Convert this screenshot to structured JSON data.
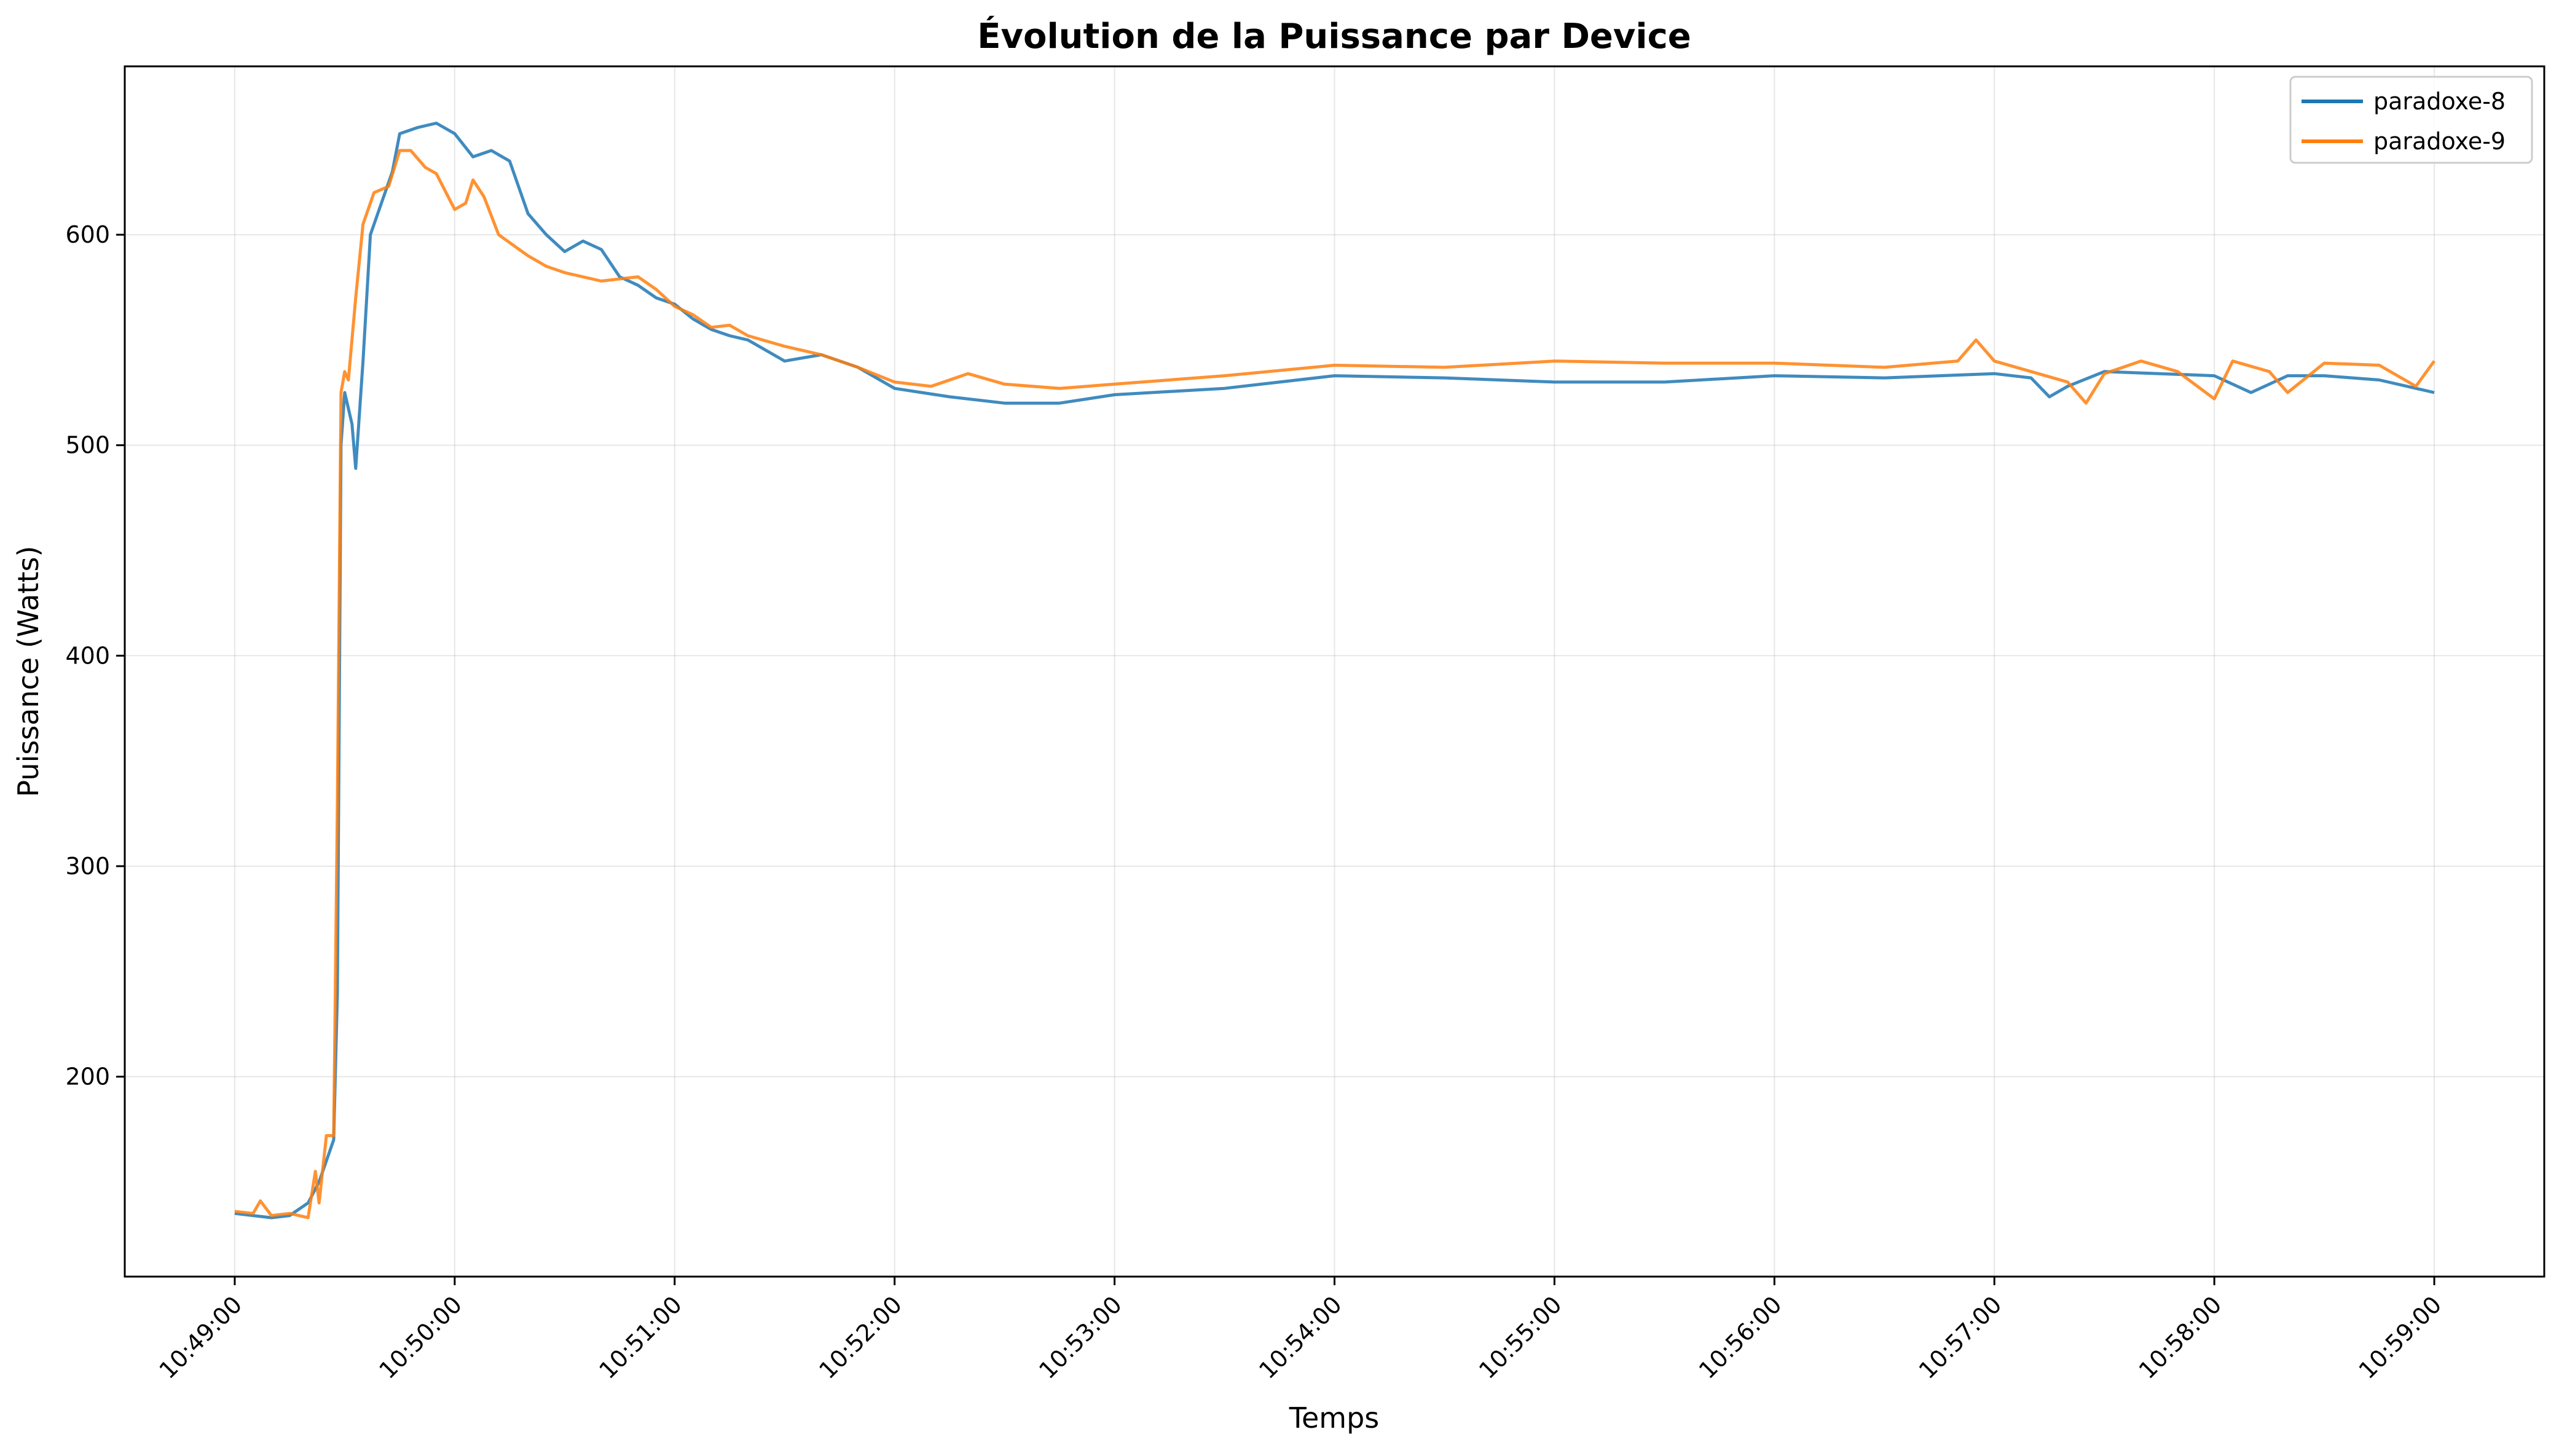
{
  "chart_data": {
    "type": "line",
    "title": "Évolution de la Puissance par Device",
    "xlabel": "Temps",
    "ylabel": "Puissance (Watts)",
    "x_ticks": [
      "10:49:00",
      "10:50:00",
      "10:51:00",
      "10:52:00",
      "10:53:00",
      "10:54:00",
      "10:55:00",
      "10:56:00",
      "10:57:00",
      "10:58:00",
      "10:59:00"
    ],
    "x_range": [
      "10:48:30",
      "10:59:30"
    ],
    "y_ticks": [
      200,
      300,
      400,
      500,
      600
    ],
    "ylim": [
      105,
      680
    ],
    "grid": true,
    "legend_position": "top-right",
    "series": [
      {
        "name": "paradoxe-8",
        "color": "#1f77b4",
        "points": [
          [
            "10:49:00",
            135
          ],
          [
            "10:49:10",
            133
          ],
          [
            "10:49:15",
            134
          ],
          [
            "10:49:20",
            140
          ],
          [
            "10:49:23",
            150
          ],
          [
            "10:49:25",
            160
          ],
          [
            "10:49:27",
            170
          ],
          [
            "10:49:28",
            240
          ],
          [
            "10:49:29",
            500
          ],
          [
            "10:49:30",
            525
          ],
          [
            "10:49:32",
            510
          ],
          [
            "10:49:33",
            489
          ],
          [
            "10:49:35",
            540
          ],
          [
            "10:49:37",
            600
          ],
          [
            "10:49:40",
            615
          ],
          [
            "10:49:43",
            630
          ],
          [
            "10:49:45",
            648
          ],
          [
            "10:49:50",
            651
          ],
          [
            "10:49:55",
            653
          ],
          [
            "10:50:00",
            648
          ],
          [
            "10:50:05",
            637
          ],
          [
            "10:50:10",
            640
          ],
          [
            "10:50:15",
            635
          ],
          [
            "10:50:20",
            610
          ],
          [
            "10:50:25",
            600
          ],
          [
            "10:50:30",
            592
          ],
          [
            "10:50:35",
            597
          ],
          [
            "10:50:40",
            593
          ],
          [
            "10:50:45",
            580
          ],
          [
            "10:50:50",
            576
          ],
          [
            "10:50:55",
            570
          ],
          [
            "10:51:00",
            567
          ],
          [
            "10:51:05",
            560
          ],
          [
            "10:51:10",
            555
          ],
          [
            "10:51:15",
            552
          ],
          [
            "10:51:20",
            550
          ],
          [
            "10:51:30",
            540
          ],
          [
            "10:51:40",
            543
          ],
          [
            "10:51:50",
            537
          ],
          [
            "10:52:00",
            527
          ],
          [
            "10:52:15",
            523
          ],
          [
            "10:52:30",
            520
          ],
          [
            "10:52:45",
            520
          ],
          [
            "10:53:00",
            524
          ],
          [
            "10:53:30",
            527
          ],
          [
            "10:54:00",
            533
          ],
          [
            "10:54:30",
            532
          ],
          [
            "10:55:00",
            530
          ],
          [
            "10:55:30",
            530
          ],
          [
            "10:56:00",
            533
          ],
          [
            "10:56:30",
            532
          ],
          [
            "10:57:00",
            534
          ],
          [
            "10:57:10",
            532
          ],
          [
            "10:57:15",
            523
          ],
          [
            "10:57:20",
            528
          ],
          [
            "10:57:30",
            535
          ],
          [
            "10:57:45",
            534
          ],
          [
            "10:58:00",
            533
          ],
          [
            "10:58:10",
            525
          ],
          [
            "10:58:20",
            533
          ],
          [
            "10:58:30",
            533
          ],
          [
            "10:58:45",
            531
          ],
          [
            "10:59:00",
            525
          ]
        ]
      },
      {
        "name": "paradoxe-9",
        "color": "#ff7f0e",
        "points": [
          [
            "10:49:00",
            136
          ],
          [
            "10:49:05",
            135
          ],
          [
            "10:49:07",
            141
          ],
          [
            "10:49:10",
            134
          ],
          [
            "10:49:15",
            135
          ],
          [
            "10:49:20",
            133
          ],
          [
            "10:49:22",
            155
          ],
          [
            "10:49:23",
            140
          ],
          [
            "10:49:25",
            172
          ],
          [
            "10:49:27",
            172
          ],
          [
            "10:49:28",
            330
          ],
          [
            "10:49:29",
            525
          ],
          [
            "10:49:30",
            535
          ],
          [
            "10:49:31",
            531
          ],
          [
            "10:49:33",
            570
          ],
          [
            "10:49:35",
            605
          ],
          [
            "10:49:38",
            620
          ],
          [
            "10:49:42",
            623
          ],
          [
            "10:49:45",
            640
          ],
          [
            "10:49:48",
            640
          ],
          [
            "10:49:52",
            632
          ],
          [
            "10:49:55",
            629
          ],
          [
            "10:50:00",
            612
          ],
          [
            "10:50:03",
            615
          ],
          [
            "10:50:05",
            626
          ],
          [
            "10:50:08",
            618
          ],
          [
            "10:50:12",
            600
          ],
          [
            "10:50:20",
            590
          ],
          [
            "10:50:25",
            585
          ],
          [
            "10:50:30",
            582
          ],
          [
            "10:50:40",
            578
          ],
          [
            "10:50:50",
            580
          ],
          [
            "10:50:55",
            574
          ],
          [
            "10:51:00",
            566
          ],
          [
            "10:51:05",
            562
          ],
          [
            "10:51:10",
            556
          ],
          [
            "10:51:15",
            557
          ],
          [
            "10:51:20",
            552
          ],
          [
            "10:51:30",
            547
          ],
          [
            "10:51:40",
            543
          ],
          [
            "10:51:50",
            537
          ],
          [
            "10:52:00",
            530
          ],
          [
            "10:52:10",
            528
          ],
          [
            "10:52:20",
            534
          ],
          [
            "10:52:30",
            529
          ],
          [
            "10:52:45",
            527
          ],
          [
            "10:53:00",
            529
          ],
          [
            "10:53:30",
            533
          ],
          [
            "10:54:00",
            538
          ],
          [
            "10:54:30",
            537
          ],
          [
            "10:55:00",
            540
          ],
          [
            "10:55:30",
            539
          ],
          [
            "10:56:00",
            539
          ],
          [
            "10:56:30",
            537
          ],
          [
            "10:56:50",
            540
          ],
          [
            "10:56:55",
            550
          ],
          [
            "10:57:00",
            540
          ],
          [
            "10:57:10",
            535
          ],
          [
            "10:57:20",
            530
          ],
          [
            "10:57:25",
            520
          ],
          [
            "10:57:30",
            534
          ],
          [
            "10:57:40",
            540
          ],
          [
            "10:57:50",
            535
          ],
          [
            "10:58:00",
            522
          ],
          [
            "10:58:05",
            540
          ],
          [
            "10:58:15",
            535
          ],
          [
            "10:58:20",
            525
          ],
          [
            "10:58:30",
            539
          ],
          [
            "10:58:45",
            538
          ],
          [
            "10:58:55",
            528
          ],
          [
            "10:59:00",
            540
          ]
        ]
      }
    ]
  }
}
